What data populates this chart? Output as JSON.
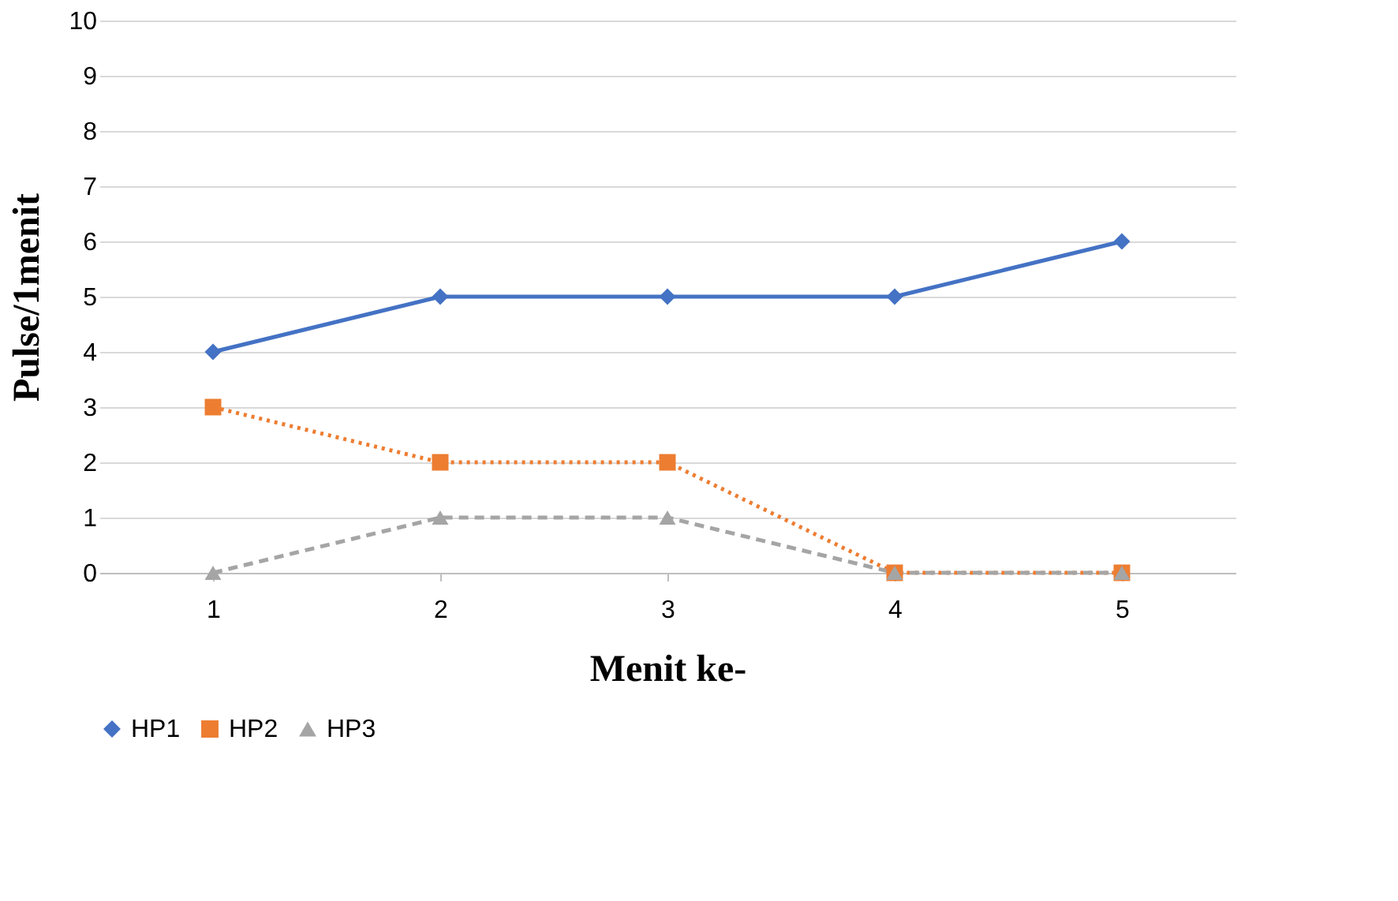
{
  "chart_data": {
    "type": "line",
    "xlabel": "Menit ke-",
    "ylabel": "Pulse/1menit",
    "categories": [
      "1",
      "2",
      "3",
      "4",
      "5"
    ],
    "series": [
      {
        "name": "HP1",
        "color": "#4472c4",
        "values": [
          4,
          5,
          5,
          5,
          6
        ],
        "marker": "diamond",
        "line_style": "solid"
      },
      {
        "name": "HP2",
        "color": "#ed7d31",
        "values": [
          3,
          2,
          2,
          0,
          0
        ],
        "marker": "square",
        "line_style": "dotted"
      },
      {
        "name": "HP3",
        "color": "#a5a5a5",
        "values": [
          0,
          1,
          1,
          0,
          0
        ],
        "marker": "triangle",
        "line_style": "dashed"
      }
    ],
    "ylim": [
      0,
      10
    ],
    "yticks": [
      0,
      1,
      2,
      3,
      4,
      5,
      6,
      7,
      8,
      9,
      10
    ],
    "grid": "y",
    "legend": "bottom"
  }
}
